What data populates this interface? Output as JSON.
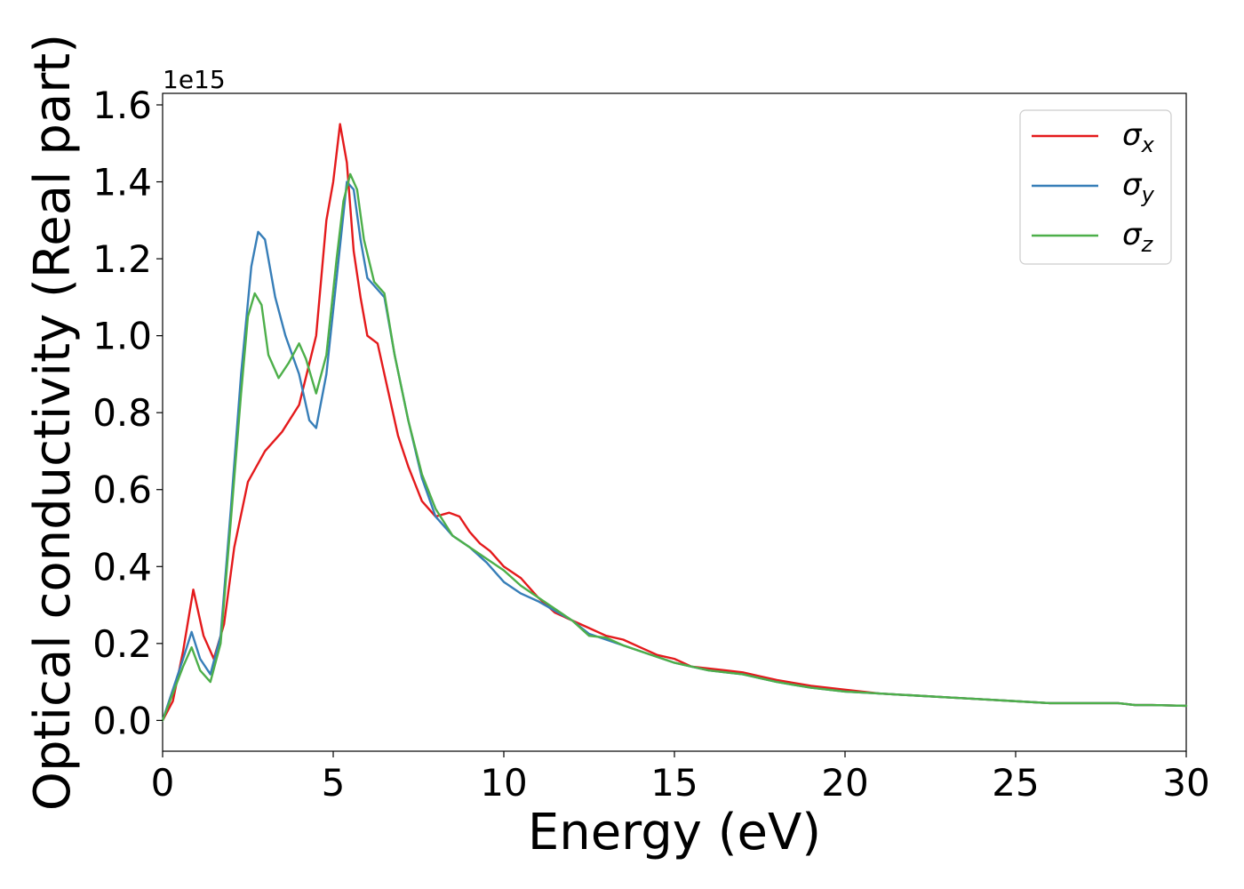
{
  "chart_data": {
    "type": "line",
    "title": "",
    "xlabel": "Energy (eV)",
    "ylabel": "Optical conductivity (Real part)",
    "y_offset_text": "1e15",
    "xlim": [
      0,
      30
    ],
    "ylim": [
      -0.08,
      1.63
    ],
    "x_ticks": [
      0,
      5,
      10,
      15,
      20,
      25,
      30
    ],
    "x_tick_labels": [
      "0",
      "5",
      "10",
      "15",
      "20",
      "25",
      "30"
    ],
    "y_ticks": [
      0.0,
      0.2,
      0.4,
      0.6,
      0.8,
      1.0,
      1.2,
      1.4,
      1.6
    ],
    "y_tick_labels": [
      "0.0",
      "0.2",
      "0.4",
      "0.6",
      "0.8",
      "1.0",
      "1.2",
      "1.4",
      "1.6"
    ],
    "grid": false,
    "legend_position": "top-right",
    "series": [
      {
        "name": "σx",
        "symbol": "σ",
        "subscript": "x",
        "color": "#e41a1c",
        "x": [
          0,
          0.3,
          0.6,
          0.9,
          1.2,
          1.5,
          1.8,
          2.1,
          2.5,
          3.0,
          3.5,
          4.0,
          4.5,
          4.8,
          5.0,
          5.2,
          5.4,
          5.6,
          5.8,
          6.0,
          6.3,
          6.6,
          6.9,
          7.2,
          7.6,
          8.0,
          8.4,
          8.7,
          9.0,
          9.3,
          9.6,
          10.0,
          10.5,
          11.0,
          11.5,
          12.0,
          12.5,
          13.0,
          13.5,
          14.0,
          14.5,
          15.0,
          15.5,
          16.0,
          16.5,
          17.0,
          17.5,
          18.0,
          19.0,
          20.0,
          21.0,
          22.0,
          23.0,
          24.0,
          25.0,
          26.0,
          27.0,
          28.0,
          28.5,
          29.0,
          30.0
        ],
        "values": [
          0.0,
          0.05,
          0.18,
          0.34,
          0.22,
          0.16,
          0.25,
          0.45,
          0.62,
          0.7,
          0.75,
          0.82,
          1.0,
          1.3,
          1.4,
          1.55,
          1.45,
          1.22,
          1.1,
          1.0,
          0.98,
          0.86,
          0.74,
          0.66,
          0.57,
          0.53,
          0.54,
          0.53,
          0.49,
          0.46,
          0.44,
          0.4,
          0.37,
          0.32,
          0.28,
          0.26,
          0.24,
          0.22,
          0.21,
          0.19,
          0.17,
          0.16,
          0.14,
          0.135,
          0.13,
          0.125,
          0.115,
          0.105,
          0.09,
          0.08,
          0.07,
          0.065,
          0.06,
          0.055,
          0.05,
          0.045,
          0.045,
          0.045,
          0.04,
          0.04,
          0.038
        ]
      },
      {
        "name": "σy",
        "symbol": "σ",
        "subscript": "y",
        "color": "#377eb8",
        "x": [
          0,
          0.3,
          0.6,
          0.85,
          1.1,
          1.4,
          1.7,
          2.0,
          2.3,
          2.6,
          2.8,
          3.0,
          3.3,
          3.6,
          4.0,
          4.3,
          4.5,
          4.8,
          5.1,
          5.4,
          5.6,
          5.8,
          6.0,
          6.2,
          6.5,
          6.8,
          7.2,
          7.6,
          8.0,
          8.5,
          9.0,
          9.5,
          10.0,
          10.5,
          11.0,
          11.5,
          12.0,
          12.5,
          13.0,
          13.5,
          14.0,
          14.5,
          15.0,
          15.5,
          16.0,
          16.5,
          17.0,
          17.5,
          18.0,
          19.0,
          20.0,
          21.0,
          22.0,
          23.0,
          24.0,
          25.0,
          26.0,
          27.0,
          28.0,
          28.5,
          29.0,
          30.0
        ],
        "values": [
          0.0,
          0.08,
          0.16,
          0.23,
          0.16,
          0.12,
          0.22,
          0.55,
          0.9,
          1.18,
          1.27,
          1.25,
          1.1,
          1.0,
          0.9,
          0.78,
          0.76,
          0.9,
          1.15,
          1.4,
          1.38,
          1.25,
          1.15,
          1.13,
          1.1,
          0.95,
          0.78,
          0.63,
          0.53,
          0.48,
          0.45,
          0.41,
          0.36,
          0.33,
          0.31,
          0.285,
          0.26,
          0.225,
          0.21,
          0.195,
          0.18,
          0.165,
          0.15,
          0.14,
          0.13,
          0.125,
          0.12,
          0.11,
          0.1,
          0.085,
          0.075,
          0.07,
          0.065,
          0.06,
          0.055,
          0.05,
          0.045,
          0.045,
          0.045,
          0.04,
          0.04,
          0.038
        ]
      },
      {
        "name": "σz",
        "symbol": "σ",
        "subscript": "z",
        "color": "#4daf4a",
        "x": [
          0,
          0.3,
          0.6,
          0.85,
          1.1,
          1.4,
          1.7,
          2.0,
          2.3,
          2.5,
          2.7,
          2.9,
          3.1,
          3.4,
          3.7,
          4.0,
          4.2,
          4.5,
          4.8,
          5.1,
          5.3,
          5.5,
          5.7,
          5.9,
          6.2,
          6.5,
          6.8,
          7.2,
          7.6,
          8.0,
          8.5,
          9.0,
          9.5,
          10.0,
          10.5,
          11.0,
          11.5,
          12.0,
          12.5,
          13.0,
          13.5,
          14.0,
          14.5,
          15.0,
          15.5,
          16.0,
          16.5,
          17.0,
          17.5,
          18.0,
          19.0,
          20.0,
          21.0,
          22.0,
          23.0,
          24.0,
          25.0,
          26.0,
          27.0,
          28.0,
          28.5,
          29.0,
          30.0
        ],
        "values": [
          0.0,
          0.07,
          0.14,
          0.19,
          0.13,
          0.1,
          0.2,
          0.52,
          0.85,
          1.05,
          1.11,
          1.08,
          0.95,
          0.89,
          0.93,
          0.98,
          0.94,
          0.85,
          0.95,
          1.2,
          1.35,
          1.42,
          1.38,
          1.25,
          1.14,
          1.11,
          0.95,
          0.78,
          0.64,
          0.55,
          0.48,
          0.45,
          0.42,
          0.39,
          0.35,
          0.32,
          0.29,
          0.26,
          0.22,
          0.215,
          0.195,
          0.18,
          0.165,
          0.15,
          0.14,
          0.13,
          0.125,
          0.12,
          0.11,
          0.1,
          0.085,
          0.075,
          0.07,
          0.065,
          0.06,
          0.055,
          0.05,
          0.045,
          0.045,
          0.045,
          0.04,
          0.04,
          0.038
        ]
      }
    ]
  }
}
